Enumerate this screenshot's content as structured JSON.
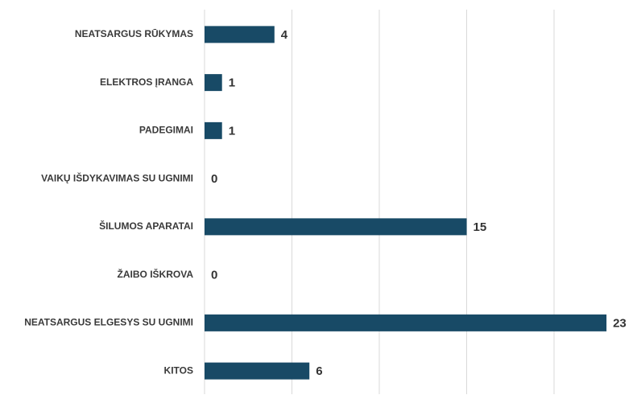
{
  "chart_data": {
    "type": "bar",
    "orientation": "horizontal",
    "categories": [
      "NEATSARGUS RŪKYMAS",
      "ELEKTROS ĮRANGA",
      "PADEGIMAI",
      "VAIKŲ IŠDYKAVIMAS SU UGNIMI",
      "ŠILUMOS APARATAI",
      "ŽAIBO IŠKROVA",
      "NEATSARGUS ELGESYS SU UGNIMI",
      "KITOS"
    ],
    "values": [
      4,
      1,
      1,
      0,
      15,
      0,
      23,
      6
    ],
    "color": "#184a66",
    "xlim": [
      0,
      24
    ],
    "xticks": [
      0,
      5,
      10,
      15,
      20
    ],
    "grid": true
  }
}
